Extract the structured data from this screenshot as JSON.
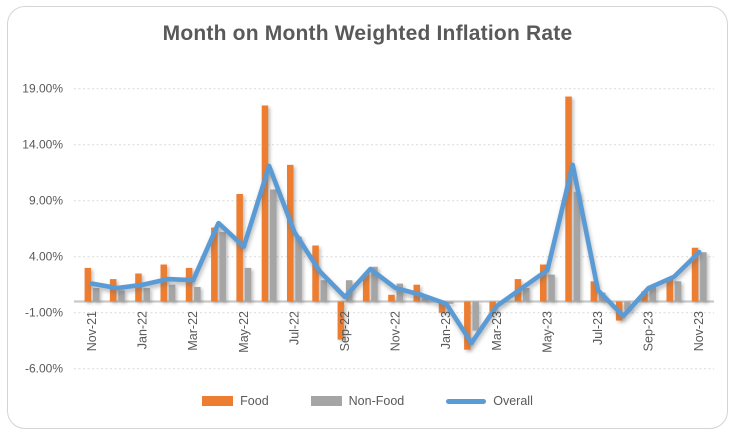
{
  "window": {
    "title": "Month on Month Weighted Inflation Rate"
  },
  "chart_data": {
    "type": "combo-bar-line",
    "title": "Month on Month Weighted Inflation Rate",
    "categories": [
      "Nov-21",
      "Dec-21",
      "Jan-22",
      "Feb-22",
      "Mar-22",
      "Apr-22",
      "May-22",
      "Jun-22",
      "Jul-22",
      "Aug-22",
      "Sep-22",
      "Oct-22",
      "Nov-22",
      "Dec-22",
      "Jan-23",
      "Feb-23",
      "Mar-23",
      "Apr-23",
      "May-23",
      "Jun-23",
      "Jul-23",
      "Aug-23",
      "Sep-23",
      "Oct-23",
      "Nov-23"
    ],
    "x_tick_shown_every": 2,
    "series": [
      {
        "name": "Food",
        "type": "bar",
        "color": "#ED7D31",
        "values": [
          3.0,
          2.0,
          2.5,
          3.3,
          3.0,
          6.6,
          9.6,
          17.5,
          12.2,
          5.0,
          -3.4,
          2.5,
          0.6,
          1.5,
          -1.0,
          -4.3,
          -0.9,
          2.0,
          3.3,
          18.3,
          1.8,
          -1.7,
          0.9,
          2.1,
          4.8
        ]
      },
      {
        "name": "Non-Food",
        "type": "bar",
        "color": "#A5A5A5",
        "values": [
          1.2,
          1.0,
          1.2,
          1.5,
          1.3,
          6.2,
          3.0,
          10.0,
          5.8,
          1.9,
          1.9,
          3.1,
          1.6,
          0.3,
          -0.2,
          -2.6,
          -0.1,
          1.2,
          2.4,
          9.8,
          0.8,
          -0.8,
          1.3,
          1.8,
          4.4
        ]
      },
      {
        "name": "Overall",
        "type": "line",
        "color": "#5B9BD5",
        "values": [
          1.6,
          1.2,
          1.5,
          2.0,
          1.9,
          7.0,
          4.9,
          12.1,
          6.2,
          2.7,
          0.4,
          2.9,
          1.2,
          0.6,
          -0.2,
          -3.7,
          -0.4,
          1.2,
          2.8,
          12.2,
          1.0,
          -1.3,
          1.2,
          2.2,
          4.4
        ]
      }
    ],
    "y_axis": {
      "min": -6,
      "max": 19,
      "ticks": [
        19,
        14,
        9,
        4,
        -1,
        -6
      ],
      "tick_labels": [
        "19.00%",
        "14.00%",
        "9.00%",
        "4.00%",
        "-1.00%",
        "-6.00%"
      ]
    },
    "grid": true,
    "legend_position": "bottom",
    "colors": {
      "grid": "#D9D9D9",
      "baseline": "#C9C9C9",
      "text": "#595959",
      "title": "#595959"
    }
  },
  "legend": {
    "items": [
      {
        "label": "Food",
        "color": "#ED7D31",
        "shape": "rect"
      },
      {
        "label": "Non-Food",
        "color": "#A5A5A5",
        "shape": "rect"
      },
      {
        "label": "Overall",
        "color": "#5B9BD5",
        "shape": "line"
      }
    ]
  }
}
